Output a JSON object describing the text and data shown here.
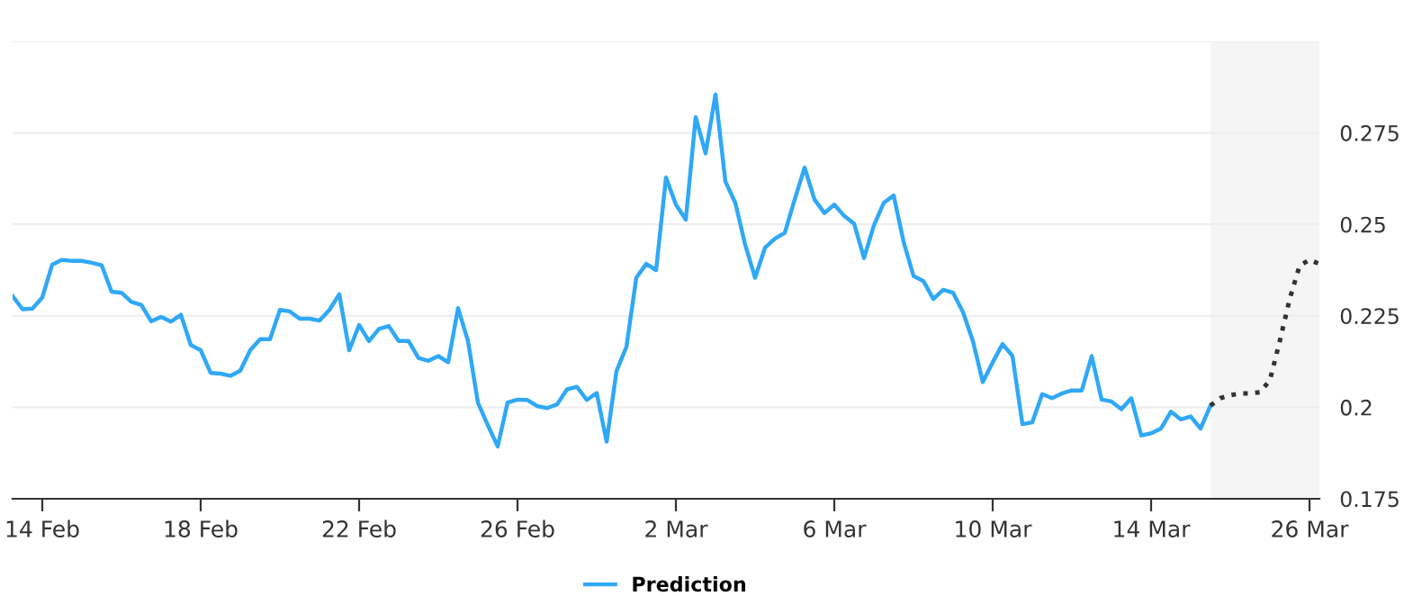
{
  "chart_data": {
    "type": "line",
    "categories": [
      null,
      null,
      null,
      "14 Feb",
      null,
      null,
      null,
      null,
      null,
      null,
      null,
      null,
      null,
      null,
      null,
      null,
      null,
      null,
      null,
      "18 Feb",
      null,
      null,
      null,
      null,
      null,
      null,
      null,
      null,
      null,
      null,
      null,
      null,
      null,
      null,
      null,
      "22 Feb",
      null,
      null,
      null,
      null,
      null,
      null,
      null,
      null,
      null,
      null,
      null,
      null,
      null,
      null,
      null,
      "26 Feb",
      null,
      null,
      null,
      null,
      null,
      null,
      null,
      null,
      null,
      null,
      null,
      null,
      null,
      null,
      null,
      "2 Mar",
      null,
      null,
      null,
      null,
      null,
      null,
      null,
      null,
      null,
      null,
      null,
      null,
      null,
      null,
      null,
      "6 Mar",
      null,
      null,
      null,
      null,
      null,
      null,
      null,
      null,
      null,
      null,
      null,
      null,
      null,
      null,
      null,
      "10 Mar",
      null,
      null,
      null,
      null,
      null,
      null,
      null,
      null,
      null,
      null,
      null,
      null,
      null,
      null,
      null,
      "14 Mar",
      null,
      null,
      null,
      null,
      null,
      null,
      null,
      null,
      null,
      null,
      null,
      null,
      null,
      null,
      null,
      "26 Mar",
      null
    ],
    "series": [
      {
        "name": "Prediction",
        "color": "#2fa8f7",
        "line_style": "solid",
        "values": [
          0.2304,
          0.2268,
          0.227,
          0.23,
          0.239,
          0.2403,
          0.24,
          0.24,
          0.2395,
          0.2388,
          0.2316,
          0.2313,
          0.2288,
          0.228,
          0.2235,
          0.2247,
          0.2234,
          0.2253,
          0.217,
          0.2156,
          0.2094,
          0.2092,
          0.2086,
          0.21,
          0.2156,
          0.2186,
          0.2186,
          0.2266,
          0.2262,
          0.2242,
          0.2242,
          0.2237,
          0.2266,
          0.2309,
          0.2156,
          0.2225,
          0.2181,
          0.2214,
          0.2222,
          0.2181,
          0.2181,
          0.2135,
          0.2127,
          0.214,
          0.2123,
          0.2271,
          0.2181,
          0.2013,
          0.1951,
          0.1893,
          0.2013,
          0.2021,
          0.202,
          0.2003,
          0.1998,
          0.2008,
          0.2049,
          0.2056,
          0.202,
          0.2039,
          0.1906,
          0.2099,
          0.2165,
          0.2354,
          0.2392,
          0.2375,
          0.2628,
          0.2554,
          0.2513,
          0.2793,
          0.2694,
          0.2855,
          0.2617,
          0.2559,
          0.2444,
          0.2354,
          0.2436,
          0.2461,
          0.2477,
          0.2568,
          0.2655,
          0.2568,
          0.2531,
          0.2554,
          0.2523,
          0.2502,
          0.2408,
          0.2497,
          0.2559,
          0.2579,
          0.2452,
          0.2359,
          0.2345,
          0.2296,
          0.2321,
          0.2313,
          0.226,
          0.2181,
          0.2069,
          0.2123,
          0.2173,
          0.214,
          0.1954,
          0.1959,
          0.2036,
          0.2025,
          0.2038,
          0.2046,
          0.2046,
          0.214,
          0.2021,
          0.2016,
          0.1995,
          0.2025,
          0.1923,
          0.1929,
          0.1942,
          0.1988,
          0.1967,
          0.1975,
          0.1942,
          0.2005,
          null,
          null,
          null,
          null,
          null,
          null,
          null,
          null,
          null,
          null,
          null
        ]
      },
      {
        "color": "#333333",
        "line_style": "dotted",
        "values": [
          null,
          null,
          null,
          null,
          null,
          null,
          null,
          null,
          null,
          null,
          null,
          null,
          null,
          null,
          null,
          null,
          null,
          null,
          null,
          null,
          null,
          null,
          null,
          null,
          null,
          null,
          null,
          null,
          null,
          null,
          null,
          null,
          null,
          null,
          null,
          null,
          null,
          null,
          null,
          null,
          null,
          null,
          null,
          null,
          null,
          null,
          null,
          null,
          null,
          null,
          null,
          null,
          null,
          null,
          null,
          null,
          null,
          null,
          null,
          null,
          null,
          null,
          null,
          null,
          null,
          null,
          null,
          null,
          null,
          null,
          null,
          null,
          null,
          null,
          null,
          null,
          null,
          null,
          null,
          null,
          null,
          null,
          null,
          null,
          null,
          null,
          null,
          null,
          null,
          null,
          null,
          null,
          null,
          null,
          null,
          null,
          null,
          null,
          null,
          null,
          null,
          null,
          null,
          null,
          null,
          null,
          null,
          null,
          null,
          null,
          null,
          null,
          null,
          null,
          null,
          null,
          null,
          null,
          null,
          null,
          null,
          0.2005,
          0.2025,
          0.2033,
          0.2038,
          0.2038,
          0.2041,
          0.2074,
          0.2181,
          0.2296,
          0.2387,
          0.2403,
          0.2392
        ]
      }
    ],
    "ylim": [
      0.175,
      0.3
    ],
    "yticks": [
      0.175,
      0.2,
      0.225,
      0.25,
      0.275,
      {
        "value": 0.3,
        "label": null
      }
    ],
    "grid": "y",
    "legend": "bottom",
    "marker": "none"
  }
}
